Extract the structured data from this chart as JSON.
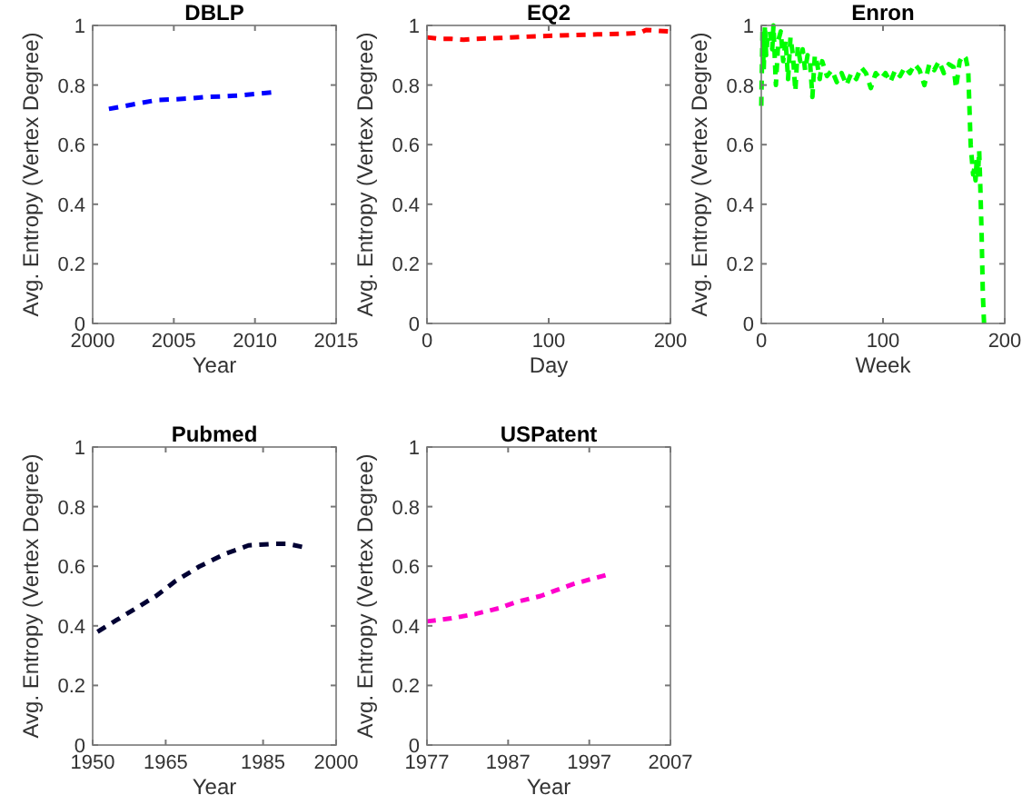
{
  "chart_data": [
    {
      "type": "line",
      "title": "DBLP",
      "xlabel": "Year",
      "ylabel": "Avg. Entropy (Vertex Degree)",
      "xlim": [
        2000,
        2015
      ],
      "xticks": [
        2000,
        2005,
        2010,
        2015
      ],
      "ylim": [
        0,
        1
      ],
      "yticks": [
        0,
        0.2,
        0.4,
        0.6,
        0.8,
        1
      ],
      "grid": false,
      "line_style": "dashed",
      "series": [
        {
          "color": "#0000ff",
          "x": [
            2001,
            2002,
            2003,
            2004,
            2005,
            2006,
            2007,
            2008,
            2009,
            2010,
            2011
          ],
          "values": [
            0.72,
            0.73,
            0.74,
            0.75,
            0.752,
            0.755,
            0.76,
            0.762,
            0.765,
            0.77,
            0.775
          ]
        }
      ]
    },
    {
      "type": "line",
      "title": "EQ2",
      "xlabel": "Day",
      "ylabel": "Avg. Entropy (Vertex Degree)",
      "xlim": [
        0,
        200
      ],
      "xticks": [
        0,
        100,
        200
      ],
      "ylim": [
        0,
        1
      ],
      "yticks": [
        0,
        0.2,
        0.4,
        0.6,
        0.8,
        1
      ],
      "grid": false,
      "line_style": "dashed",
      "series": [
        {
          "color": "#ff0000",
          "x": [
            0,
            10,
            20,
            30,
            40,
            60,
            80,
            100,
            120,
            140,
            160,
            175,
            180,
            190,
            198
          ],
          "values": [
            0.96,
            0.955,
            0.955,
            0.952,
            0.955,
            0.958,
            0.962,
            0.965,
            0.968,
            0.97,
            0.972,
            0.975,
            0.985,
            0.982,
            0.98
          ]
        }
      ]
    },
    {
      "type": "line",
      "title": "Enron",
      "xlabel": "Week",
      "ylabel": "Avg. Entropy (Vertex Degree)",
      "xlim": [
        0,
        200
      ],
      "xticks": [
        0,
        100,
        200
      ],
      "ylim": [
        0,
        1
      ],
      "yticks": [
        0,
        0.2,
        0.4,
        0.6,
        0.8,
        1
      ],
      "grid": false,
      "line_style": "dashed",
      "series": [
        {
          "color": "#00ff00",
          "x": [
            0,
            1,
            2,
            3,
            4,
            5,
            7,
            9,
            10,
            12,
            14,
            16,
            18,
            20,
            22,
            24,
            26,
            28,
            30,
            32,
            34,
            36,
            38,
            40,
            42,
            44,
            46,
            48,
            50,
            54,
            58,
            62,
            66,
            70,
            74,
            78,
            82,
            86,
            90,
            94,
            98,
            102,
            106,
            110,
            114,
            118,
            122,
            126,
            130,
            134,
            138,
            142,
            146,
            150,
            154,
            158,
            160,
            163,
            166,
            168,
            170,
            172,
            174,
            175,
            176,
            177,
            178,
            179,
            180,
            181,
            182,
            183
          ],
          "values": [
            0.73,
            0.98,
            0.85,
            1.0,
            0.9,
            0.95,
            0.98,
            0.92,
            1.0,
            0.8,
            0.95,
            0.98,
            0.88,
            0.95,
            0.82,
            0.96,
            0.9,
            0.78,
            0.93,
            0.88,
            0.92,
            0.85,
            0.9,
            0.88,
            0.76,
            0.9,
            0.87,
            0.82,
            0.88,
            0.83,
            0.85,
            0.81,
            0.84,
            0.8,
            0.84,
            0.82,
            0.86,
            0.84,
            0.79,
            0.84,
            0.82,
            0.84,
            0.81,
            0.85,
            0.83,
            0.86,
            0.84,
            0.87,
            0.85,
            0.8,
            0.87,
            0.85,
            0.88,
            0.84,
            0.87,
            0.86,
            0.79,
            0.88,
            0.9,
            0.89,
            0.85,
            0.6,
            0.5,
            0.52,
            0.48,
            0.55,
            0.5,
            0.58,
            0.45,
            0.3,
            0.1,
            0.0
          ]
        }
      ]
    },
    {
      "type": "line",
      "title": "Pubmed",
      "xlabel": "Year",
      "ylabel": "Avg. Entropy (Vertex Degree)",
      "xlim": [
        1950,
        2000
      ],
      "xticks": [
        1950,
        1965,
        1985,
        2000
      ],
      "ylim": [
        0,
        1
      ],
      "yticks": [
        0,
        0.2,
        0.4,
        0.6,
        0.8,
        1
      ],
      "grid": false,
      "line_style": "dashed",
      "series": [
        {
          "color": "#000033",
          "x": [
            1951,
            1955,
            1958,
            1963,
            1967,
            1972,
            1977,
            1982,
            1987,
            1990,
            1993
          ],
          "values": [
            0.38,
            0.42,
            0.45,
            0.5,
            0.55,
            0.6,
            0.64,
            0.67,
            0.675,
            0.675,
            0.665
          ]
        }
      ]
    },
    {
      "type": "line",
      "title": "USPatent",
      "xlabel": "Year",
      "ylabel": "Avg. Entropy (Vertex Degree)",
      "xlim": [
        1977,
        2007
      ],
      "xticks": [
        1977,
        1987,
        1997,
        2007
      ],
      "ylim": [
        0,
        1
      ],
      "yticks": [
        0,
        0.2,
        0.4,
        0.6,
        0.8,
        1
      ],
      "grid": false,
      "line_style": "dashed",
      "series": [
        {
          "color": "#ff00cc",
          "x": [
            1977,
            1980,
            1983,
            1986,
            1988,
            1991,
            1993,
            1995,
            1997,
            1999
          ],
          "values": [
            0.415,
            0.425,
            0.44,
            0.46,
            0.48,
            0.5,
            0.52,
            0.54,
            0.555,
            0.57
          ]
        }
      ]
    }
  ]
}
